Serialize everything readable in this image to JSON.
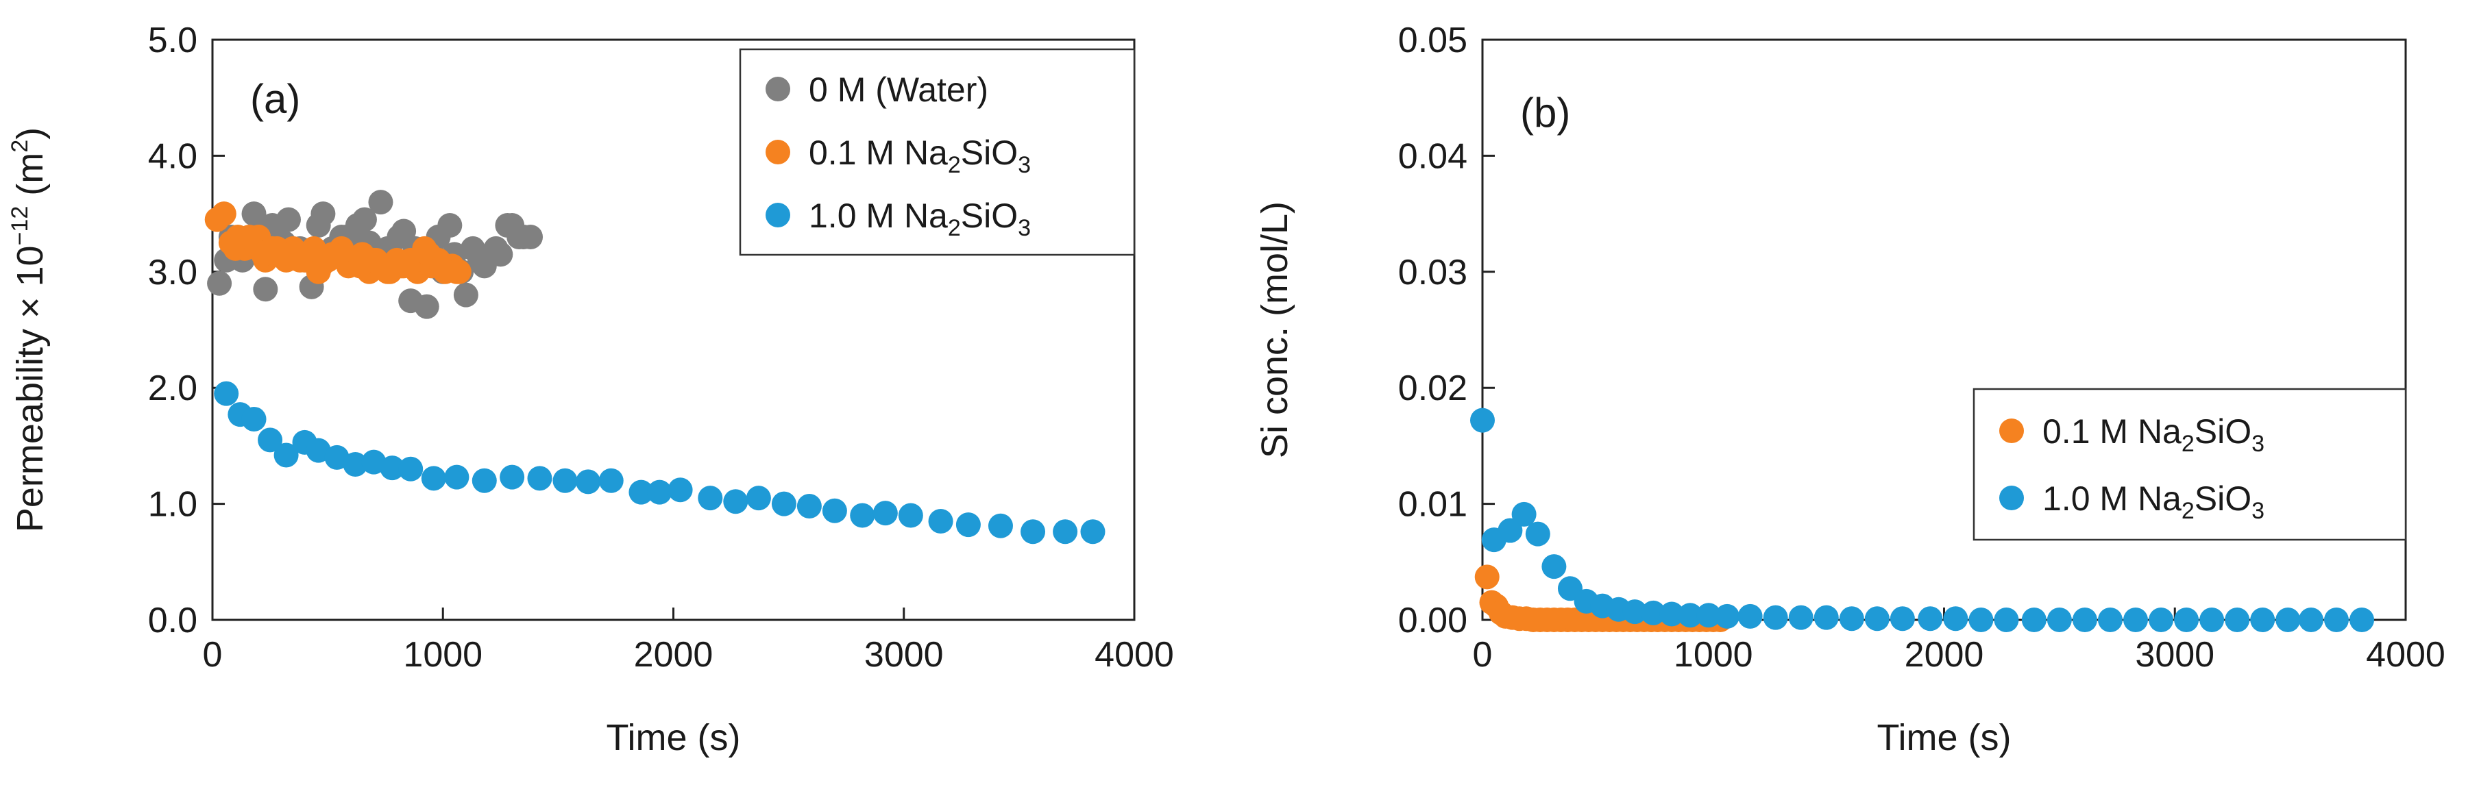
{
  "chart_data": [
    {
      "id": "a",
      "type": "scatter",
      "panel_label": "(a)",
      "xlabel": "Time (s)",
      "ylabel_prefix": "Permeability × 10",
      "ylabel_exp": "−12",
      "ylabel_unit_open": " (m",
      "ylabel_unit_exp": "2",
      "ylabel_unit_close": ")",
      "xlim": [
        0,
        4000
      ],
      "ylim": [
        0,
        5
      ],
      "xticks": [
        0,
        1000,
        2000,
        3000,
        4000
      ],
      "xtick_labels": [
        "0",
        "1000",
        "2000",
        "3000",
        "4000"
      ],
      "yticks": [
        0,
        1,
        2,
        3,
        4,
        5
      ],
      "ytick_labels": [
        "0.0",
        "1.0",
        "2.0",
        "3.0",
        "4.0",
        "5.0"
      ],
      "grid": false,
      "legend_position": "top-right",
      "series": [
        {
          "name": "0 M (Water)",
          "legend_main": "0 M (Water)",
          "legend_sub": "",
          "legend_tail": "",
          "color": "#808080",
          "x": [
            30,
            80,
            130,
            180,
            230,
            280,
            330,
            380,
            430,
            480,
            530,
            580,
            630,
            680,
            730,
            780,
            830,
            880,
            930,
            980,
            1030,
            1080,
            1130,
            1180,
            1230,
            1280,
            1330,
            1380,
            60,
            150,
            210,
            260,
            310,
            410,
            460,
            520,
            560,
            610,
            660,
            700,
            760,
            810,
            860,
            900,
            950,
            1000,
            1050,
            1100,
            1160,
            1250,
            1300,
            1350
          ],
          "y": [
            2.9,
            3.3,
            3.1,
            3.5,
            2.85,
            3.3,
            3.45,
            3.2,
            2.87,
            3.5,
            3.2,
            3.3,
            3.4,
            3.25,
            3.6,
            3.1,
            3.35,
            3.2,
            2.7,
            3.3,
            3.4,
            3.0,
            3.2,
            3.05,
            3.2,
            3.4,
            3.3,
            3.3,
            3.1,
            3.2,
            3.35,
            3.4,
            3.25,
            3.1,
            3.4,
            3.2,
            3.3,
            3.15,
            3.45,
            3.1,
            3.2,
            3.3,
            2.75,
            3.1,
            3.2,
            3.0,
            3.15,
            2.8,
            3.1,
            3.15,
            3.4,
            3.3
          ]
        },
        {
          "name": "0.1 M Na2SiO3",
          "legend_main": "0.1 M  Na",
          "legend_sub": "2",
          "legend_tail": "SiO",
          "legend_sub2": "3",
          "color": "#f58220",
          "x": [
            20,
            50,
            80,
            110,
            140,
            170,
            200,
            230,
            260,
            290,
            320,
            350,
            380,
            410,
            440,
            470,
            500,
            530,
            560,
            590,
            620,
            650,
            680,
            710,
            740,
            770,
            800,
            830,
            860,
            890,
            920,
            950,
            980,
            1010,
            1040,
            1070,
            100,
            160,
            220,
            280,
            340,
            400,
            460,
            520,
            580,
            640,
            700,
            760,
            820,
            880,
            940,
            1000,
            1060
          ],
          "y": [
            3.45,
            3.5,
            3.25,
            3.3,
            3.2,
            3.25,
            3.3,
            3.1,
            3.2,
            3.15,
            3.1,
            3.2,
            3.1,
            3.15,
            3.2,
            3.05,
            3.1,
            3.15,
            3.2,
            3.05,
            3.1,
            3.15,
            3.0,
            3.1,
            3.05,
            3.0,
            3.1,
            3.05,
            3.1,
            3.0,
            3.2,
            3.05,
            3.1,
            3.0,
            3.05,
            3.0,
            3.2,
            3.3,
            3.15,
            3.2,
            3.15,
            3.1,
            3.0,
            3.15,
            3.1,
            3.05,
            3.1,
            3.0,
            3.05,
            3.1,
            3.15,
            3.05,
            3.0
          ]
        },
        {
          "name": "1.0 M Na2SiO3",
          "legend_main": "1.0 M  Na",
          "legend_sub": "2",
          "legend_tail": "SiO",
          "legend_sub2": "3",
          "color": "#1f9ad6",
          "x": [
            60,
            120,
            180,
            250,
            320,
            400,
            460,
            540,
            620,
            700,
            780,
            860,
            960,
            1060,
            1180,
            1300,
            1420,
            1530,
            1630,
            1730,
            1860,
            1940,
            2030,
            2160,
            2270,
            2370,
            2480,
            2590,
            2700,
            2820,
            2920,
            3030,
            3160,
            3280,
            3420,
            3560,
            3700,
            3820
          ],
          "y": [
            1.95,
            1.77,
            1.73,
            1.55,
            1.42,
            1.53,
            1.46,
            1.4,
            1.34,
            1.36,
            1.31,
            1.3,
            1.22,
            1.23,
            1.2,
            1.23,
            1.22,
            1.2,
            1.19,
            1.2,
            1.1,
            1.1,
            1.12,
            1.05,
            1.02,
            1.05,
            1.0,
            0.98,
            0.94,
            0.9,
            0.92,
            0.9,
            0.85,
            0.82,
            0.81,
            0.76,
            0.76,
            0.76
          ]
        }
      ]
    },
    {
      "id": "b",
      "type": "scatter",
      "panel_label": "(b)",
      "xlabel": "Time (s)",
      "ylabel_prefix": "Si conc. (mol/L)",
      "xlim": [
        0,
        4000
      ],
      "ylim": [
        0,
        0.05
      ],
      "xticks": [
        0,
        1000,
        2000,
        3000,
        4000
      ],
      "xtick_labels": [
        "0",
        "1000",
        "2000",
        "3000",
        "4000"
      ],
      "yticks": [
        0,
        0.01,
        0.02,
        0.03,
        0.04,
        0.05
      ],
      "ytick_labels": [
        "0.00",
        "0.01",
        "0.02",
        "0.03",
        "0.04",
        "0.05"
      ],
      "grid": false,
      "legend_position": "center-right",
      "series": [
        {
          "name": "0.1 M Na2SiO3",
          "legend_main": "0.1 M  Na",
          "legend_sub": "2",
          "legend_tail": "SiO",
          "legend_sub2": "3",
          "color": "#f58220",
          "x": [
            20,
            40,
            60,
            80,
            100,
            130,
            160,
            190,
            220,
            250,
            280,
            310,
            340,
            370,
            400,
            430,
            460,
            490,
            520,
            550,
            580,
            610,
            640,
            670,
            700,
            730,
            760,
            790,
            820,
            850,
            880,
            910,
            940,
            970,
            1000,
            1030
          ],
          "y": [
            0.0037,
            0.0015,
            0.0012,
            0.0006,
            0.0003,
            0.0002,
            0.0001,
            0.0001,
            0.0,
            0.0,
            0.0,
            0.0,
            0.0,
            0.0,
            0.0,
            0.0,
            0.0,
            0.0,
            0.0,
            0.0,
            0.0,
            0.0,
            0.0,
            0.0,
            0.0,
            0.0,
            0.0,
            0.0,
            0.0,
            0.0,
            0.0,
            0.0,
            0.0,
            0.0,
            0.0,
            0.0
          ]
        },
        {
          "name": "1.0 M Na2SiO3",
          "legend_main": "1.0 M  Na",
          "legend_sub": "2",
          "legend_tail": "SiO",
          "legend_sub2": "3",
          "color": "#1f9ad6",
          "x": [
            0,
            50,
            120,
            180,
            240,
            310,
            380,
            450,
            520,
            590,
            660,
            740,
            820,
            900,
            980,
            1060,
            1160,
            1270,
            1380,
            1490,
            1600,
            1710,
            1820,
            1940,
            2050,
            2160,
            2270,
            2390,
            2500,
            2610,
            2720,
            2830,
            2940,
            3050,
            3160,
            3270,
            3380,
            3490,
            3590,
            3700,
            3810
          ],
          "y": [
            0.0172,
            0.0069,
            0.0077,
            0.0091,
            0.0074,
            0.0046,
            0.0027,
            0.0016,
            0.0012,
            0.0009,
            0.0007,
            0.0006,
            0.0005,
            0.0004,
            0.0004,
            0.0003,
            0.0003,
            0.0002,
            0.0002,
            0.0002,
            0.0001,
            0.0001,
            0.0001,
            0.0001,
            0.0001,
            0.0,
            0.0,
            0.0,
            0.0,
            0.0,
            0.0,
            0.0,
            0.0,
            0.0,
            0.0,
            0.0,
            0.0,
            0.0,
            0.0,
            0.0,
            0.0
          ]
        }
      ]
    }
  ]
}
